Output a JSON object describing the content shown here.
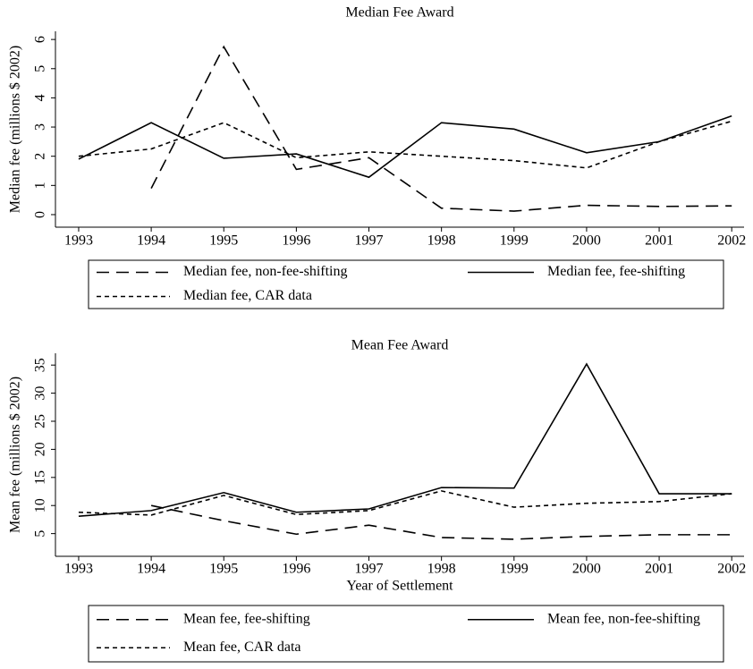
{
  "chart_data": [
    {
      "type": "line",
      "title": "Median Fee Award",
      "y_label": "Median fee (millions $ 2002)",
      "x": [
        1993,
        1994,
        1995,
        1996,
        1997,
        1998,
        1999,
        2000,
        2001,
        2002
      ],
      "xlim": [
        1992.68,
        2002.17
      ],
      "xticks": [
        1993,
        1994,
        1995,
        1996,
        1997,
        1998,
        1999,
        2000,
        2001,
        2002
      ],
      "ylim": [
        -0.43,
        6.28
      ],
      "yticks": [
        0,
        1,
        2,
        3,
        4,
        5,
        6
      ],
      "legend": "bottom",
      "series": [
        {
          "name": "Median fee, non-fee-shifting",
          "color": "#000000",
          "dash": "long",
          "values": [
            null,
            0.9,
            5.75,
            1.55,
            1.95,
            0.22,
            0.12,
            0.32,
            0.28,
            0.3
          ]
        },
        {
          "name": "Median fee, fee-shifting",
          "color": "#000000",
          "dash": "solid",
          "values": [
            1.9,
            3.15,
            1.93,
            2.08,
            1.28,
            3.15,
            2.93,
            2.12,
            2.5,
            3.38
          ]
        },
        {
          "name": "Median fee, CAR data",
          "color": "#000000",
          "dash": "short",
          "values": [
            2.0,
            2.25,
            3.15,
            1.95,
            2.15,
            2.0,
            1.85,
            1.6,
            2.5,
            3.2
          ]
        }
      ]
    },
    {
      "type": "line",
      "title": "Mean Fee Award",
      "y_label": "Mean fee (millions $ 2002)",
      "x_label": "Year of Settlement",
      "x": [
        1993,
        1994,
        1995,
        1996,
        1997,
        1998,
        1999,
        2000,
        2001,
        2002
      ],
      "xlim": [
        1992.68,
        2002.17
      ],
      "xticks": [
        1993,
        1994,
        1995,
        1996,
        1997,
        1998,
        1999,
        2000,
        2001,
        2002
      ],
      "ylim": [
        0.96,
        37.1
      ],
      "yticks": [
        5,
        10,
        15,
        20,
        25,
        30,
        35
      ],
      "legend": "bottom",
      "series": [
        {
          "name": "Mean fee, fee-shifting",
          "color": "#000000",
          "dash": "long",
          "values": [
            null,
            10,
            7.3,
            4.9,
            6.5,
            4.3,
            4.0,
            4.5,
            4.8,
            4.8
          ]
        },
        {
          "name": "Mean fee, non-fee-shifting",
          "color": "#000000",
          "dash": "solid",
          "values": [
            8.1,
            9.1,
            12.3,
            8.8,
            9.4,
            13.2,
            13.1,
            35.2,
            12.1,
            12.1
          ]
        },
        {
          "name": "Mean fee, CAR data",
          "color": "#000000",
          "dash": "short",
          "values": [
            8.8,
            8.3,
            11.8,
            8.4,
            9.1,
            12.6,
            9.7,
            10.4,
            10.7,
            12.1
          ]
        }
      ]
    }
  ]
}
